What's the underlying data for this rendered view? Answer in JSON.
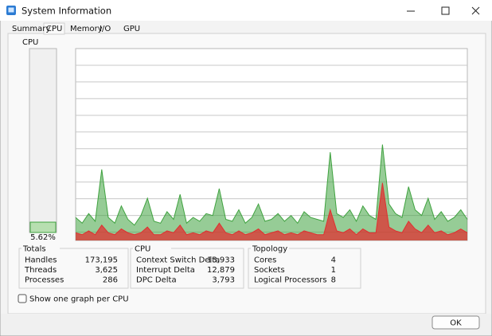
{
  "window": {
    "title": "System Information"
  },
  "tabs": [
    "Summary",
    "CPU",
    "Memory",
    "I/O",
    "GPU"
  ],
  "cpu_meter": {
    "label": "CPU",
    "value": 5.62,
    "value_label": "5.62%",
    "range": [
      0,
      100
    ]
  },
  "graph": {
    "ylim": [
      0,
      100
    ],
    "total": [
      12,
      9,
      14,
      10,
      37,
      12,
      9,
      18,
      11,
      8,
      13,
      22,
      10,
      9,
      15,
      11,
      24,
      9,
      12,
      10,
      14,
      13,
      27,
      11,
      10,
      16,
      9,
      12,
      19,
      10,
      11,
      14,
      10,
      13,
      9,
      15,
      12,
      11,
      10,
      46,
      14,
      12,
      16,
      10,
      18,
      13,
      11,
      50,
      19,
      14,
      12,
      28,
      16,
      13,
      22,
      11,
      15,
      10,
      12,
      16,
      11
    ],
    "kernel": [
      4,
      3,
      5,
      3,
      8,
      4,
      3,
      6,
      4,
      3,
      4,
      7,
      3,
      3,
      5,
      4,
      8,
      3,
      4,
      3,
      5,
      4,
      9,
      4,
      3,
      5,
      3,
      4,
      6,
      3,
      4,
      5,
      3,
      4,
      3,
      5,
      4,
      3,
      3,
      16,
      5,
      4,
      6,
      3,
      6,
      4,
      4,
      30,
      7,
      5,
      4,
      10,
      6,
      4,
      8,
      4,
      5,
      3,
      4,
      6,
      4
    ],
    "total_color": "#3fa23f",
    "kernel_color": "#e03030"
  },
  "groups": [
    {
      "title": "Totals",
      "rows": [
        [
          "Handles",
          "173,195"
        ],
        [
          "Threads",
          "3,625"
        ],
        [
          "Processes",
          "286"
        ]
      ]
    },
    {
      "title": "CPU",
      "rows": [
        [
          "Context Switch Delta",
          "13,933"
        ],
        [
          "Interrupt Delta",
          "12,879"
        ],
        [
          "DPC Delta",
          "3,793"
        ]
      ]
    },
    {
      "title": "Topology",
      "rows": [
        [
          "Cores",
          "4"
        ],
        [
          "Sockets",
          "1"
        ],
        [
          "Logical Processors",
          "8"
        ]
      ]
    }
  ],
  "checkbox": "Show one graph per CPU",
  "ok": "OK"
}
